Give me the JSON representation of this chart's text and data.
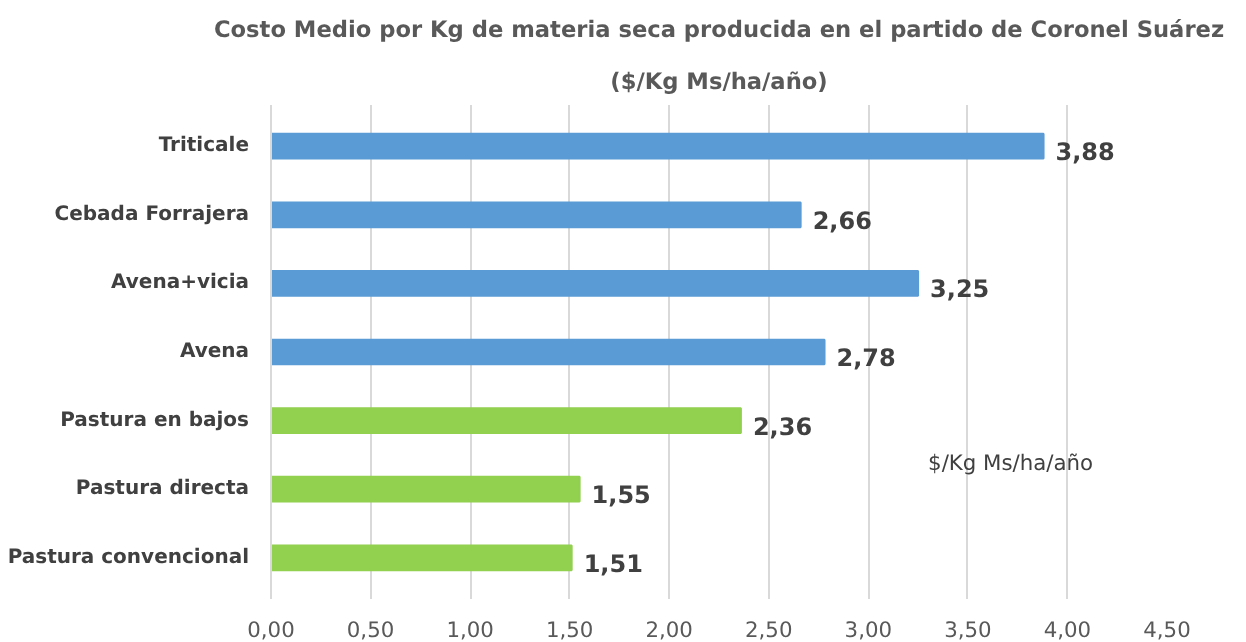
{
  "chart_data": {
    "type": "bar",
    "orientation": "horizontal",
    "title": "Costo Medio por Kg de materia seca producida en el partido de Coronel Suárez",
    "subtitle": "($/Kg Ms/ha/año)",
    "categories": [
      "Triticale",
      "Cebada Forrajera",
      "Avena+vicia",
      "Avena",
      "Pastura en bajos",
      "Pastura directa",
      "Pastura convencional"
    ],
    "values": [
      3.88,
      2.66,
      3.25,
      2.78,
      2.36,
      1.55,
      1.51
    ],
    "colors": [
      "#5b9bd5",
      "#5b9bd5",
      "#5b9bd5",
      "#5b9bd5",
      "#92d050",
      "#92d050",
      "#92d050"
    ],
    "value_labels": [
      "3,88",
      "2,66",
      "3,25",
      "2,78",
      "2,36",
      "1,55",
      "1,51"
    ],
    "xlim": [
      0,
      4.5
    ],
    "xticks": [
      {
        "value": 0,
        "label": "0,00"
      },
      {
        "value": 0.5,
        "label": "0,50"
      },
      {
        "value": 1,
        "label": "1,00"
      },
      {
        "value": 1.5,
        "label": "1,50"
      },
      {
        "value": 2,
        "label": "2,00"
      },
      {
        "value": 2.5,
        "label": "2,50"
      },
      {
        "value": 3,
        "label": "3,00"
      },
      {
        "value": 3.5,
        "label": "3,50"
      },
      {
        "value": 4,
        "label": "4,00"
      },
      {
        "value": 4.5,
        "label": "4,50"
      }
    ],
    "grid": "x",
    "annotations": [
      "$/Kg Ms/ha/año"
    ]
  }
}
